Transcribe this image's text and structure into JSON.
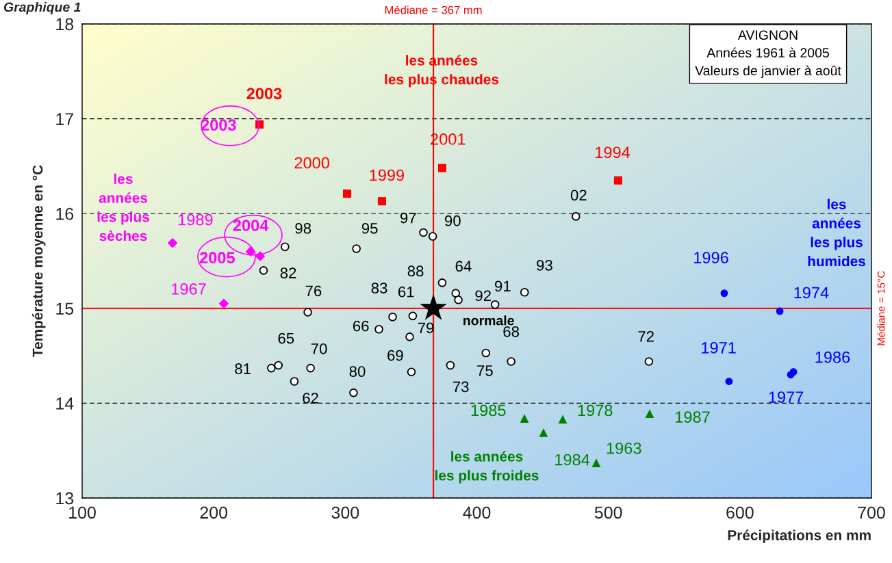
{
  "chart_data": {
    "type": "scatter",
    "title": "Graphique 1",
    "xlabel": "Précipitations en mm",
    "ylabel": "Température moyenne en °C",
    "xlim": [
      100,
      700
    ],
    "xticks": [
      100,
      200,
      300,
      400,
      500,
      600,
      700
    ],
    "ylim": [
      13,
      18
    ],
    "yticks": [
      13,
      14,
      15,
      16,
      17,
      18
    ],
    "grid": "y",
    "legend": false,
    "series": [
      {
        "type": "scatter",
        "marker": "circle",
        "color": "#ffffff",
        "x": [
          254.2,
          308.5,
          359.4,
          366.5,
          237.9,
          373.7,
          384.0,
          386.0,
          413.9,
          436.3,
          475.3,
          271.5,
          336.0,
          351.3,
          325.6,
          349.0,
          243.8,
          249.2,
          273.6,
          261.3,
          306.3,
          350.3,
          379.9,
          406.9,
          426.1,
          530.8
        ],
        "values": [
          15.65,
          15.63,
          15.8,
          15.76,
          15.4,
          15.27,
          15.16,
          15.09,
          15.04,
          15.17,
          15.97,
          14.96,
          14.91,
          14.92,
          14.78,
          14.7,
          14.37,
          14.4,
          14.37,
          14.23,
          14.11,
          14.33,
          14.4,
          14.53,
          14.44,
          14.44
        ]
      },
      {
        "type": "scatter",
        "marker": "square",
        "color": "#ff0000",
        "x": [
          234.8,
          301.4,
          327.9,
          373.7,
          507.4
        ],
        "values": [
          16.94,
          16.21,
          16.13,
          16.48,
          16.35
        ]
      },
      {
        "type": "scatter",
        "marker": "diamond",
        "color": "#ff00ff",
        "x": [
          168.7,
          228.0,
          235.3,
          207.7
        ],
        "values": [
          15.69,
          15.6,
          15.55,
          15.05
        ]
      },
      {
        "type": "scatter",
        "marker": "circle",
        "color": "#0000ff",
        "x": [
          588.1,
          630.3,
          591.7,
          638.6,
          640.7
        ],
        "values": [
          15.16,
          14.97,
          14.23,
          14.3,
          14.33
        ]
      },
      {
        "type": "scatter",
        "marker": "triangle",
        "color": "#008000",
        "x": [
          436.2,
          450.7,
          465.3,
          531.4,
          490.8
        ],
        "values": [
          13.84,
          13.69,
          13.83,
          13.89,
          13.37
        ]
      },
      {
        "type": "scatter",
        "marker": "star",
        "color": "#000000",
        "x": [
          367
        ],
        "values": [
          15
        ]
      }
    ],
    "ref_lines": [
      {
        "axis": "x",
        "value": 367,
        "label": "Médiane = 367 mm",
        "color": "#ff0000"
      },
      {
        "axis": "y",
        "value": 15,
        "label": "Médiane = 15°C",
        "color": "#ff0000"
      }
    ],
    "annotations": [
      {
        "text": "98",
        "x": 254.2,
        "y": 15.65
      },
      {
        "text": "95",
        "x": 308.5,
        "y": 15.63
      },
      {
        "text": "97",
        "x": 359.4,
        "y": 15.8
      },
      {
        "text": "90",
        "x": 366.5,
        "y": 15.76
      },
      {
        "text": "82",
        "x": 237.9,
        "y": 15.4
      },
      {
        "text": "88",
        "x": 373.7,
        "y": 15.27
      },
      {
        "text": "64",
        "x": 384.0,
        "y": 15.16
      },
      {
        "text": "92",
        "x": 386.0,
        "y": 15.09
      },
      {
        "text": "91",
        "x": 413.9,
        "y": 15.04
      },
      {
        "text": "93",
        "x": 436.3,
        "y": 15.17
      },
      {
        "text": "02",
        "x": 475.3,
        "y": 15.97
      },
      {
        "text": "76",
        "x": 271.5,
        "y": 14.96
      },
      {
        "text": "83",
        "x": 336.0,
        "y": 14.91
      },
      {
        "text": "61",
        "x": 351.3,
        "y": 14.92
      },
      {
        "text": "66",
        "x": 325.6,
        "y": 14.78
      },
      {
        "text": "79",
        "x": 349.0,
        "y": 14.7
      },
      {
        "text": "81",
        "x": 243.8,
        "y": 14.37
      },
      {
        "text": "65",
        "x": 249.2,
        "y": 14.4
      },
      {
        "text": "70",
        "x": 273.6,
        "y": 14.37
      },
      {
        "text": "62",
        "x": 261.3,
        "y": 14.23
      },
      {
        "text": "80",
        "x": 306.3,
        "y": 14.11
      },
      {
        "text": "69",
        "x": 350.3,
        "y": 14.33
      },
      {
        "text": "73",
        "x": 379.9,
        "y": 14.4
      },
      {
        "text": "75",
        "x": 406.9,
        "y": 14.53
      },
      {
        "text": "68",
        "x": 426.1,
        "y": 14.44
      },
      {
        "text": "72",
        "x": 530.8,
        "y": 14.44
      },
      {
        "text": "2003",
        "x": 234.8,
        "y": 16.94
      },
      {
        "text": "2000",
        "x": 301.4,
        "y": 16.21
      },
      {
        "text": "1999",
        "x": 327.9,
        "y": 16.13
      },
      {
        "text": "2001",
        "x": 373.7,
        "y": 16.48
      },
      {
        "text": "1994",
        "x": 507.4,
        "y": 16.35
      },
      {
        "text": "2003",
        "x": 234.8,
        "y": 16.94
      },
      {
        "text": "1989",
        "x": 168.7,
        "y": 15.69
      },
      {
        "text": "2005",
        "x": 228.0,
        "y": 15.6
      },
      {
        "text": "2004",
        "x": 235.3,
        "y": 15.55
      },
      {
        "text": "1967",
        "x": 207.7,
        "y": 15.05
      },
      {
        "text": "1996",
        "x": 588.1,
        "y": 15.16
      },
      {
        "text": "1974",
        "x": 630.3,
        "y": 14.97
      },
      {
        "text": "1971",
        "x": 591.7,
        "y": 14.23
      },
      {
        "text": "1977",
        "x": 638.6,
        "y": 14.3
      },
      {
        "text": "1986",
        "x": 640.7,
        "y": 14.33
      },
      {
        "text": "1985",
        "x": 436.2,
        "y": 13.84
      },
      {
        "text": "1984",
        "x": 450.7,
        "y": 13.69
      },
      {
        "text": "1978",
        "x": 465.3,
        "y": 13.83
      },
      {
        "text": "1987",
        "x": 531.4,
        "y": 13.89
      },
      {
        "text": "1963",
        "x": 490.8,
        "y": 13.37
      },
      {
        "text": "normale",
        "x": 367,
        "y": 15
      },
      "les années\nles plus chaudes",
      "les\nannées\nles plus\nsèches",
      "les\nannées\nles plus\nhumides",
      "les années\nles plus froides",
      "AVIGNON\nAnnées 1961 à 2005\nValeurs de janvier à août"
    ]
  }
}
